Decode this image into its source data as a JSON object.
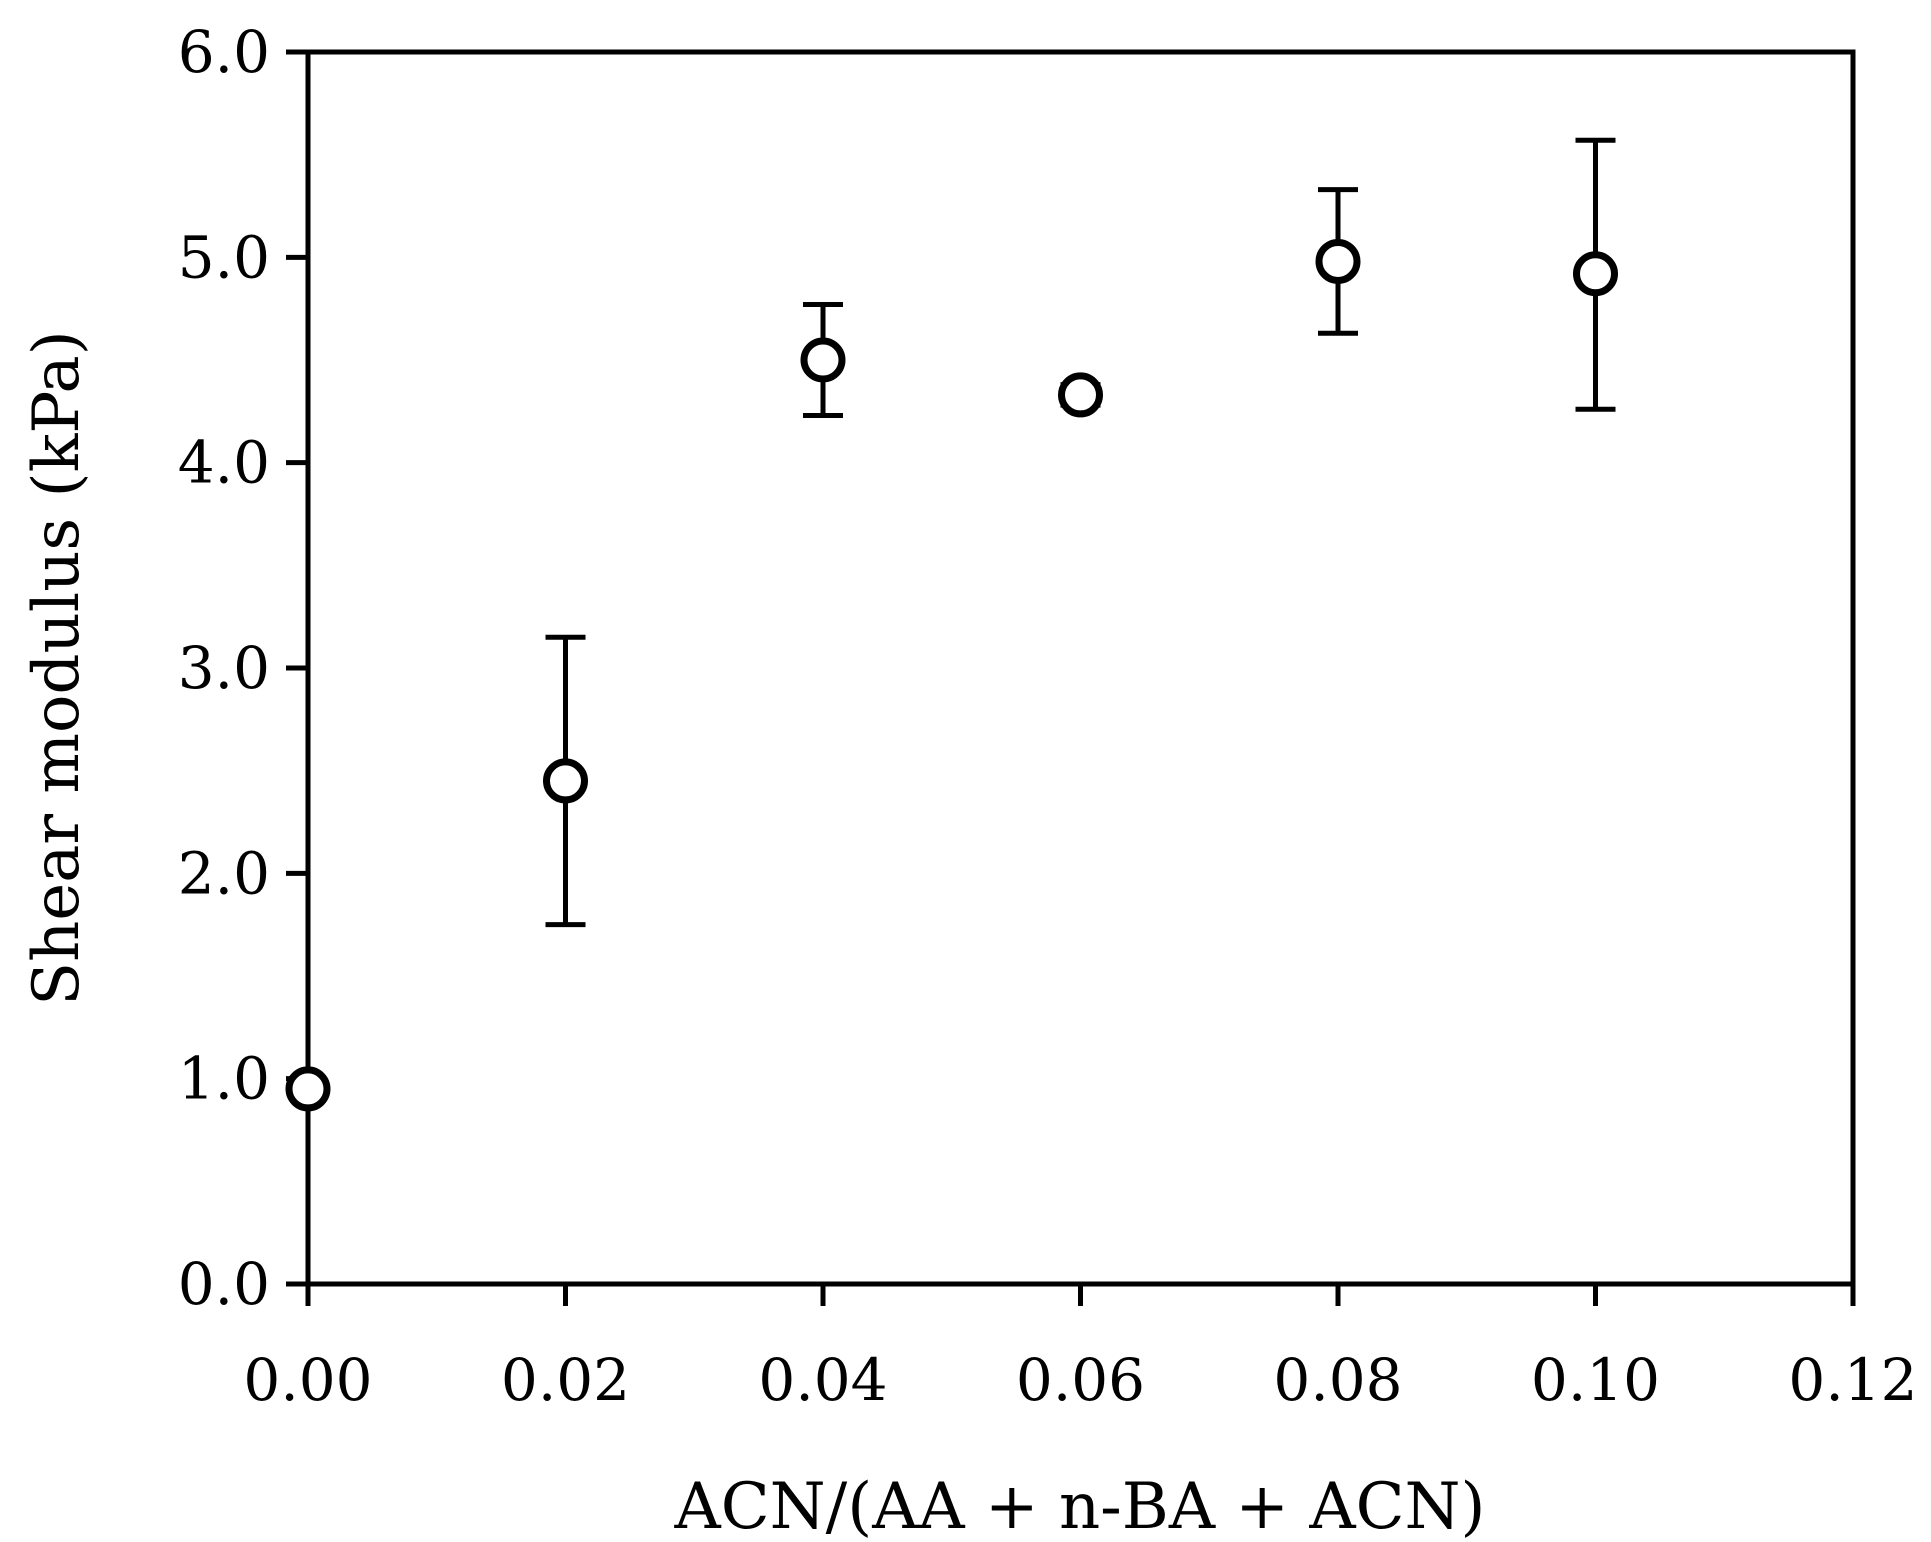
{
  "chart_data": {
    "type": "scatter",
    "title": "",
    "xlabel": "ACN/(AA + n-BA + ACN)",
    "ylabel": "Shear modulus (kPa)",
    "xlim": [
      0,
      0.12
    ],
    "ylim": [
      0,
      6
    ],
    "x_ticks": [
      "0.00",
      "0.02",
      "0.04",
      "0.06",
      "0.08",
      "0.10",
      "0.12"
    ],
    "y_ticks": [
      "0.0",
      "1.0",
      "2.0",
      "3.0",
      "4.0",
      "5.0",
      "6.0"
    ],
    "grid": false,
    "legend": "none",
    "marker": "open-circle",
    "colors": {
      "axis": "#000000",
      "marker_stroke": "#000000",
      "marker_fill": "#ffffff"
    },
    "series": [
      {
        "x": [
          0.0,
          0.02,
          0.04,
          0.06,
          0.08,
          0.1
        ],
        "y": [
          0.95,
          2.45,
          4.5,
          4.33,
          4.98,
          4.92
        ],
        "err_low": [
          0.95,
          1.75,
          4.23,
          4.28,
          4.63,
          4.26
        ],
        "err_high": [
          0.95,
          3.15,
          4.77,
          4.38,
          5.33,
          5.57
        ]
      }
    ]
  }
}
